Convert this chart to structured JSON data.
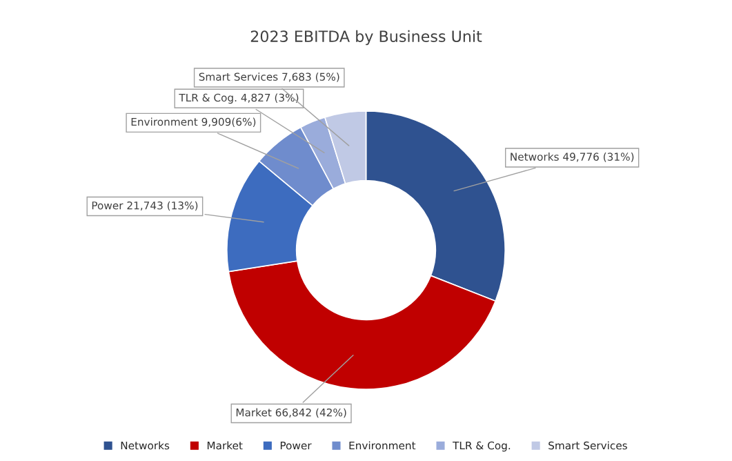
{
  "chart_data": {
    "type": "donut",
    "title": "2023 EBITDA by Business Unit",
    "categories": [
      "Networks",
      "Market",
      "Power",
      "Environment",
      "TLR & Cog.",
      "Smart Services"
    ],
    "values": [
      49776,
      66842,
      21743,
      9909,
      4827,
      7683
    ],
    "value_labels": [
      "49,776 (31%)",
      "66,842 (42%)",
      "21,743 (13%)",
      "9,909(6%)",
      "4,827 (3%)",
      "7,683 (5%)"
    ],
    "colors": [
      "#2f5290",
      "#c00000",
      "#3d6cbf",
      "#6f8ccd",
      "#9aacdb",
      "#c0c9e5"
    ],
    "legend": "bottom"
  }
}
